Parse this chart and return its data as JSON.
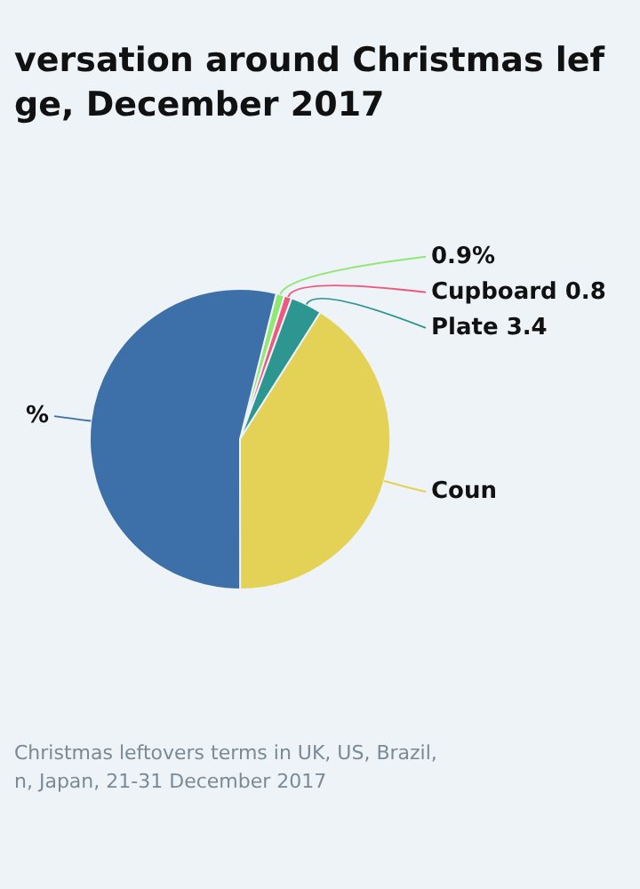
{
  "chart_data": {
    "type": "pie",
    "title": "versation around Christmas lef\nge, December 2017",
    "categories": [
      null,
      "Cupboard",
      "Plate",
      "Coun",
      null
    ],
    "values": [
      0.9,
      0.8,
      3.4,
      41,
      53.9
    ],
    "colors": [
      "#8ee872",
      "#ee5a7f",
      "#2e9690",
      "#e3d256",
      "#3d6fa8"
    ],
    "value_labels": [
      "0.9%",
      "0.8",
      "3.4",
      null,
      "%"
    ],
    "legend": false,
    "annotations": [
      "Christmas leftovers terms in UK, US, Brazil,\nn, Japan, 21-31 December 2017"
    ]
  }
}
